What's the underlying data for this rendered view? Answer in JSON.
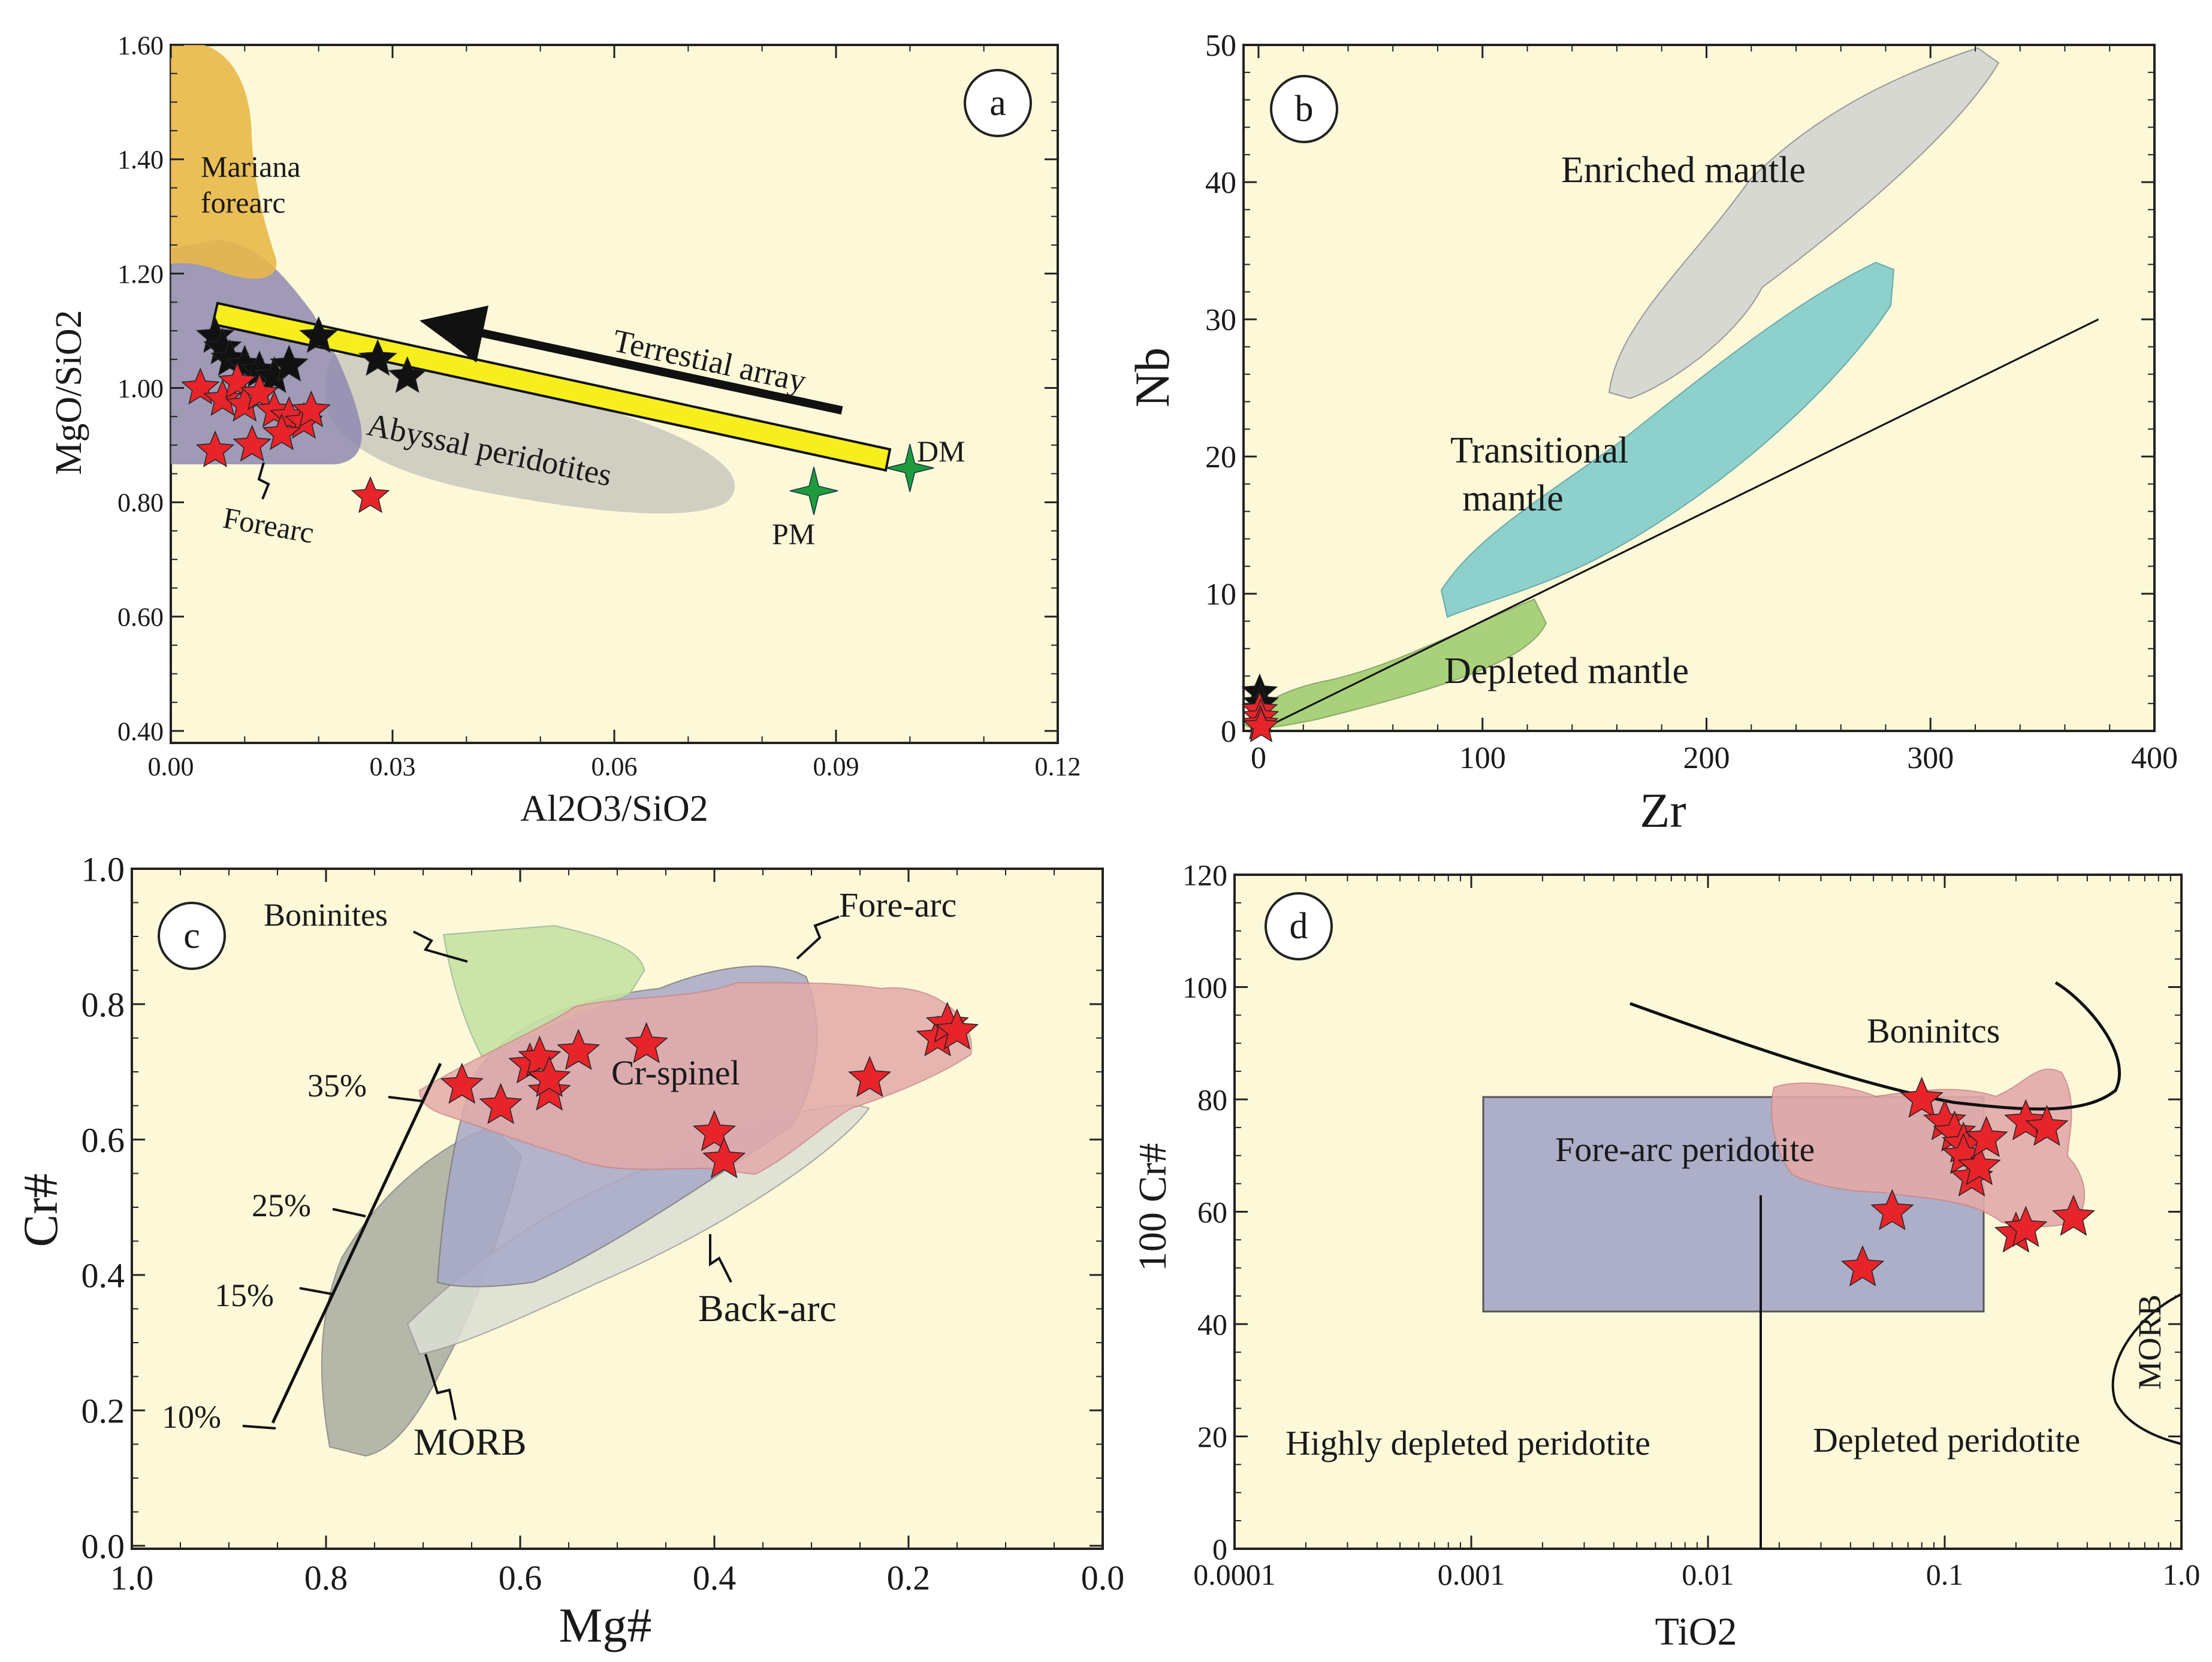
{
  "colors": {
    "plot_bg": "#fdf8d8",
    "star_red": "#e8242b",
    "star_black": "#111111",
    "star_green": "#1f9a3c",
    "mariana": "#e8b84a",
    "forearc_purple": "#8f8ab0",
    "abyssal_grey": "#c9c8bd",
    "yellow_bar": "#f7ee1e",
    "enriched_grey": "#d8d8d2",
    "transitional_teal": "#8ed0cc",
    "depleted_green": "#a9d07a",
    "boninite_green": "#c7e2a3",
    "crspinel_pink": "#e3aaaa",
    "forearc_blue": "#a7a8c8",
    "backarc_grey": "#dcdfd4",
    "morb_grey": "#aeb0a4",
    "forearc_box": "#adaec8"
  },
  "chart_data": [
    {
      "panel": "a",
      "type": "scatter",
      "xlabel": "Al2O3/SiO2",
      "ylabel": "MgO/SiO2",
      "xlim": [
        0.0,
        0.12
      ],
      "ylim": [
        0.38,
        1.6
      ],
      "xticks": [
        "0.00",
        "0.03",
        "0.06",
        "0.09",
        "0.12"
      ],
      "yticks": [
        "0.40",
        "0.60",
        "0.80",
        "1.00",
        "1.20",
        "1.40",
        "1.60"
      ],
      "labels": {
        "mariana1": "Mariana",
        "mariana2": "forearc",
        "terrestial": "Terrestial array",
        "abyssal": "Abyssal peridotites",
        "forearc": "Forearc",
        "dm": "DM",
        "pm": "PM"
      },
      "series": [
        {
          "name": "black stars",
          "points": [
            [
              0.006,
              1.09
            ],
            [
              0.007,
              1.07
            ],
            [
              0.008,
              1.05
            ],
            [
              0.01,
              1.04
            ],
            [
              0.012,
              1.03
            ],
            [
              0.014,
              1.02
            ],
            [
              0.016,
              1.04
            ],
            [
              0.02,
              1.09
            ],
            [
              0.028,
              1.05
            ],
            [
              0.032,
              1.02
            ]
          ]
        },
        {
          "name": "red stars",
          "points": [
            [
              0.004,
              1.0
            ],
            [
              0.007,
              0.98
            ],
            [
              0.009,
              1.01
            ],
            [
              0.01,
              0.97
            ],
            [
              0.012,
              0.99
            ],
            [
              0.014,
              0.96
            ],
            [
              0.016,
              0.95
            ],
            [
              0.018,
              0.94
            ],
            [
              0.019,
              0.96
            ],
            [
              0.006,
              0.89
            ],
            [
              0.011,
              0.9
            ],
            [
              0.015,
              0.92
            ],
            [
              0.027,
              0.81
            ]
          ]
        },
        {
          "name": "end members",
          "points": [
            [
              0.1,
              0.86
            ],
            [
              0.087,
              0.82
            ]
          ]
        }
      ]
    },
    {
      "panel": "b",
      "type": "scatter",
      "xlabel": "Zr",
      "ylabel": "Nb",
      "xlim": [
        0,
        400
      ],
      "ylim": [
        0,
        50
      ],
      "xticks": [
        "0",
        "100",
        "200",
        "300",
        "400"
      ],
      "yticks": [
        "0",
        "10",
        "20",
        "30",
        "40",
        "50"
      ],
      "labels": {
        "enriched": "Enriched mantle",
        "transitional1": "Transitional",
        "transitional2": "mantle",
        "depleted": "Depleted mantle"
      },
      "series": [
        {
          "name": "black stars",
          "points": [
            [
              0.5,
              2.8
            ],
            [
              1.0,
              2.0
            ]
          ]
        },
        {
          "name": "red stars",
          "points": [
            [
              0.5,
              1.5
            ],
            [
              1.0,
              1.0
            ],
            [
              0.8,
              0.5
            ],
            [
              1.2,
              0.3
            ]
          ]
        }
      ],
      "line": [
        [
          0,
          0
        ],
        [
          375,
          30
        ]
      ]
    },
    {
      "panel": "c",
      "type": "scatter",
      "xlabel": "Mg#",
      "ylabel": "Cr#",
      "xlim": [
        1.0,
        0.0
      ],
      "ylim": [
        0.0,
        1.0
      ],
      "xticks": [
        "1.0",
        "0.8",
        "0.6",
        "0.4",
        "0.2",
        "0.0"
      ],
      "yticks": [
        "0.0",
        "0.2",
        "0.4",
        "0.6",
        "0.8",
        "1.0"
      ],
      "labels": {
        "boninites": "Boninites",
        "forearc": "Fore-arc",
        "crspinel": "Cr-spinel",
        "backarc": "Back-arc",
        "morb": "MORB",
        "p35": "35%",
        "p25": "25%",
        "p15": "15%",
        "p10": "10%"
      },
      "series": [
        {
          "name": "red stars",
          "points": [
            [
              0.66,
              0.68
            ],
            [
              0.62,
              0.65
            ],
            [
              0.59,
              0.71
            ],
            [
              0.58,
              0.72
            ],
            [
              0.57,
              0.67
            ],
            [
              0.57,
              0.69
            ],
            [
              0.54,
              0.73
            ],
            [
              0.47,
              0.74
            ],
            [
              0.4,
              0.61
            ],
            [
              0.39,
              0.57
            ],
            [
              0.24,
              0.69
            ],
            [
              0.17,
              0.75
            ],
            [
              0.16,
              0.77
            ],
            [
              0.15,
              0.76
            ]
          ]
        }
      ]
    },
    {
      "panel": "d",
      "type": "scatter",
      "xlabel": "TiO2",
      "ylabel": "100 Cr#",
      "xscale": "log",
      "xlim": [
        0.0001,
        1.0
      ],
      "ylim": [
        0,
        120
      ],
      "xticks": [
        "0.0001",
        "0.001",
        "0.01",
        "0.1",
        "1.0"
      ],
      "yticks": [
        "0",
        "20",
        "40",
        "60",
        "80",
        "100",
        "120"
      ],
      "labels": {
        "boninites": "Boninitcs",
        "forearc": "Fore-arc peridotite",
        "highly": "Highly depleted peridotite",
        "depleted": "Depleted peridotite",
        "morb": "MORB"
      },
      "series": [
        {
          "name": "red stars",
          "points": [
            [
              0.045,
              50
            ],
            [
              0.06,
              60
            ],
            [
              0.08,
              80
            ],
            [
              0.1,
              76
            ],
            [
              0.11,
              74
            ],
            [
              0.12,
              72
            ],
            [
              0.12,
              70
            ],
            [
              0.13,
              66
            ],
            [
              0.14,
              68
            ],
            [
              0.15,
              73
            ],
            [
              0.2,
              56
            ],
            [
              0.22,
              57
            ],
            [
              0.22,
              76
            ],
            [
              0.27,
              75
            ],
            [
              0.35,
              59
            ]
          ]
        }
      ]
    }
  ]
}
